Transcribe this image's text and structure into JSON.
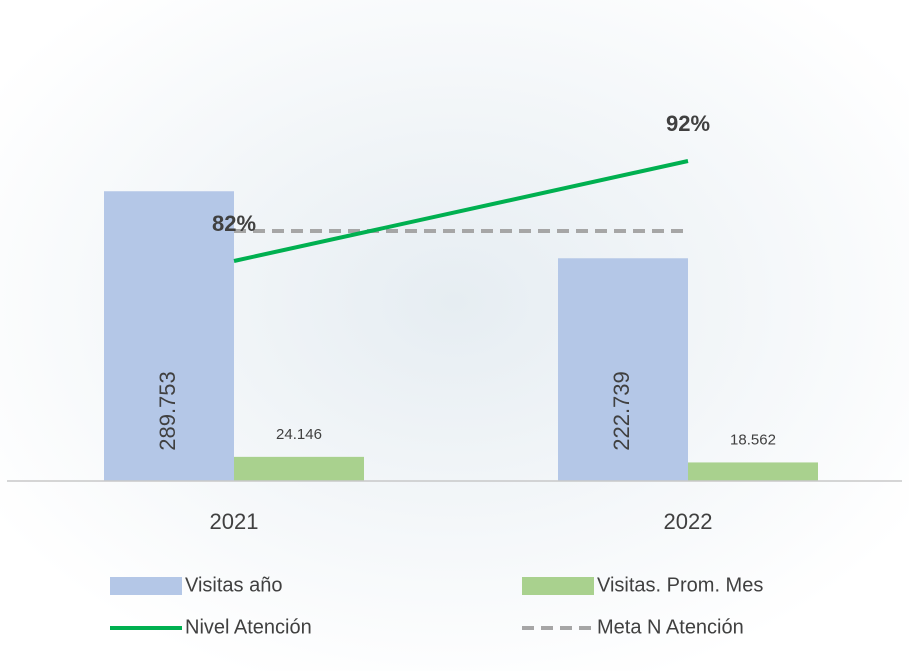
{
  "chart_data": {
    "type": "combo",
    "categories": [
      "2021",
      "2022"
    ],
    "ylim": [
      0,
      350000
    ],
    "y2lim": [
      60,
      95
    ],
    "series": [
      {
        "name": "Visitas año",
        "type": "bar",
        "color": "#b4c7e7",
        "values": [
          289753,
          222739
        ],
        "value_labels": [
          "289.753",
          "222.739"
        ]
      },
      {
        "name": "Visitas. Prom. Mes",
        "type": "bar",
        "color": "#a9d18e",
        "values": [
          24146,
          18562
        ],
        "value_labels": [
          "24.146",
          "18.562"
        ]
      },
      {
        "name": "Nivel Atención",
        "type": "line",
        "axis": "y2",
        "color": "#00b050",
        "values": [
          82,
          92
        ],
        "value_labels": [
          "82%",
          "92%"
        ]
      },
      {
        "name": "Meta N Atención",
        "type": "line",
        "axis": "y2",
        "dashed": true,
        "color": "#a6a6a6",
        "values": [
          85,
          85
        ]
      }
    ]
  }
}
